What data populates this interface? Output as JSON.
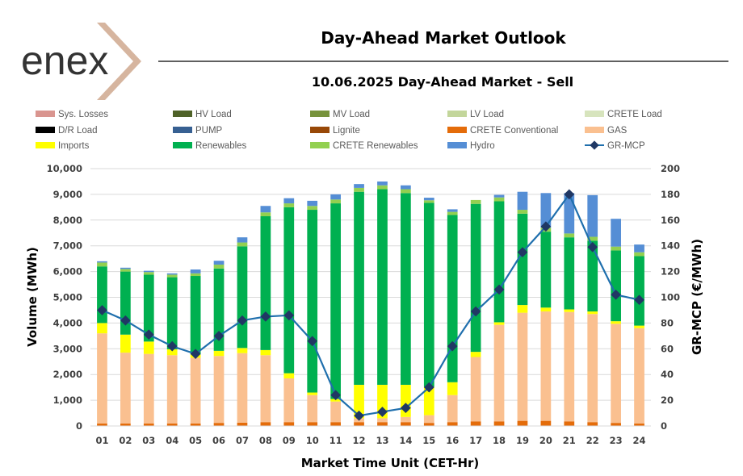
{
  "brand": {
    "logo_text": "enex",
    "logo_color": "#333333",
    "chevron_color": "#d6b59f"
  },
  "header": {
    "title": "Day-Ahead Market Outlook",
    "subtitle": "10.06.2025  Day-Ahead Market - Sell"
  },
  "chart_data": {
    "type": "bar",
    "stacked": true,
    "title": "10.06.2025  Day-Ahead Market - Sell",
    "xlabel": "Market Time Unit (CET-Hr)",
    "ylabel": "Volume (MWh)",
    "y2label": "GR-MCP (€/MWh)",
    "ylim": [
      0,
      10000
    ],
    "y2lim": [
      0,
      200
    ],
    "yticks": [
      "0",
      "1,000",
      "2,000",
      "3,000",
      "4,000",
      "5,000",
      "6,000",
      "7,000",
      "8,000",
      "9,000",
      "10,000"
    ],
    "y2ticks": [
      "0",
      "20",
      "40",
      "60",
      "80",
      "100",
      "120",
      "140",
      "160",
      "180",
      "200"
    ],
    "categories": [
      "01",
      "02",
      "03",
      "04",
      "05",
      "06",
      "07",
      "08",
      "09",
      "10",
      "11",
      "12",
      "13",
      "14",
      "15",
      "16",
      "17",
      "18",
      "19",
      "20",
      "21",
      "22",
      "23",
      "24"
    ],
    "legend": [
      {
        "name": "Sys. Losses",
        "color": "#d9958f",
        "kind": "bar"
      },
      {
        "name": "HV Load",
        "color": "#4f6228",
        "kind": "bar"
      },
      {
        "name": "MV Load",
        "color": "#77933c",
        "kind": "bar"
      },
      {
        "name": "LV Load",
        "color": "#c3d69b",
        "kind": "bar"
      },
      {
        "name": "CRETE Load",
        "color": "#d7e4bd",
        "kind": "bar"
      },
      {
        "name": "D/R Load",
        "color": "#000000",
        "kind": "bar"
      },
      {
        "name": "PUMP",
        "color": "#376092",
        "kind": "bar"
      },
      {
        "name": "Lignite",
        "color": "#984807",
        "kind": "bar"
      },
      {
        "name": "CRETE Conventional",
        "color": "#e46c0a",
        "kind": "bar"
      },
      {
        "name": "GAS",
        "color": "#fac090",
        "kind": "bar"
      },
      {
        "name": "Imports",
        "color": "#ffff00",
        "kind": "bar"
      },
      {
        "name": "Renewables",
        "color": "#00b050",
        "kind": "bar"
      },
      {
        "name": "CRETE Renewables",
        "color": "#92d050",
        "kind": "bar"
      },
      {
        "name": "Hydro",
        "color": "#558ed5",
        "kind": "bar"
      },
      {
        "name": "GR-MCP",
        "color": "#1f6fad",
        "kind": "line"
      }
    ],
    "series": [
      {
        "name": "CRETE Conventional",
        "color": "#e46c0a",
        "values": [
          100,
          100,
          100,
          100,
          100,
          120,
          130,
          150,
          150,
          150,
          150,
          150,
          150,
          150,
          120,
          150,
          180,
          180,
          200,
          200,
          180,
          150,
          120,
          100
        ]
      },
      {
        "name": "GAS",
        "color": "#fac090",
        "values": [
          3500,
          2750,
          2700,
          2650,
          2550,
          2600,
          2700,
          2600,
          1700,
          1050,
          800,
          150,
          150,
          200,
          300,
          1050,
          2500,
          3750,
          4200,
          4250,
          4250,
          4200,
          3850,
          3700
        ]
      },
      {
        "name": "Imports",
        "color": "#ffff00",
        "values": [
          400,
          700,
          480,
          230,
          130,
          200,
          200,
          200,
          200,
          100,
          100,
          1300,
          1300,
          1250,
          1100,
          500,
          200,
          100,
          300,
          150,
          100,
          100,
          100,
          100
        ]
      },
      {
        "name": "Renewables",
        "color": "#00b050",
        "values": [
          2200,
          2450,
          2600,
          2800,
          3050,
          3200,
          3950,
          5200,
          6450,
          7100,
          7600,
          7500,
          7600,
          7450,
          7150,
          6500,
          5750,
          4700,
          3550,
          2950,
          2800,
          2750,
          2750,
          2700
        ]
      },
      {
        "name": "CRETE Renewables",
        "color": "#92d050",
        "values": [
          150,
          100,
          100,
          100,
          100,
          150,
          150,
          150,
          150,
          150,
          150,
          150,
          150,
          150,
          100,
          120,
          150,
          150,
          150,
          150,
          150,
          150,
          150,
          150
        ]
      },
      {
        "name": "Hydro",
        "color": "#558ed5",
        "values": [
          50,
          50,
          50,
          50,
          150,
          150,
          200,
          250,
          200,
          200,
          200,
          150,
          150,
          150,
          100,
          100,
          0,
          100,
          700,
          1350,
          1570,
          1620,
          1080,
          300
        ]
      }
    ],
    "line": {
      "name": "GR-MCP",
      "color": "#1f6fad",
      "axis": "right",
      "values": [
        90,
        82,
        71,
        62,
        56,
        70,
        82,
        85,
        86,
        66,
        24,
        8,
        11,
        14,
        30,
        62,
        89,
        106,
        135,
        155,
        180,
        139,
        102,
        98
      ]
    }
  }
}
